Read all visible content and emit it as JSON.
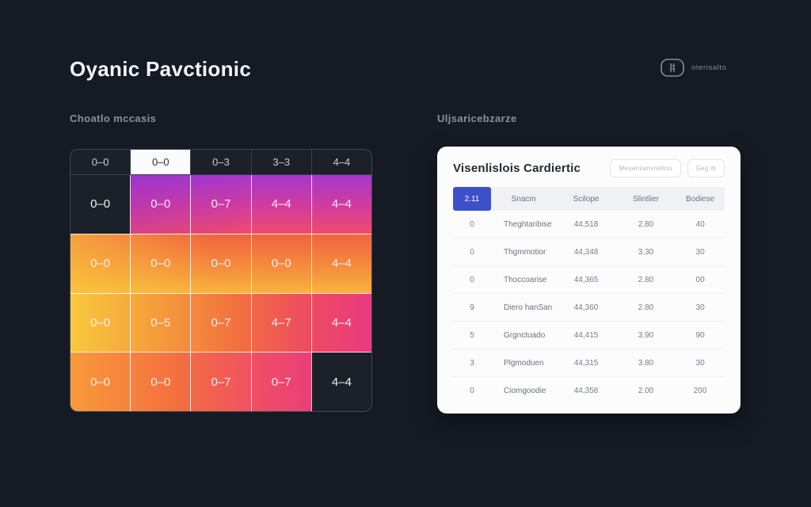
{
  "page": {
    "title": "Oyanic Pavctionic",
    "topright_chip_label": "oterisalto"
  },
  "colors": {
    "page_bg": "#151a24",
    "card_bg": "#fcfcfd",
    "accent_blue": "#3c50c8",
    "heatmap_dark_cell": "#1b2029",
    "heatmap_palette": [
      "#a637cb",
      "#f04b6c",
      "#f8c83d",
      "#f2703f",
      "#e13093"
    ]
  },
  "left": {
    "section_label": "Choatlo mccasis",
    "heatmap": {
      "header": {
        "cells": [
          "0–0",
          "0–0",
          "0–3",
          "3–3",
          "4–4"
        ],
        "highlighted_index": 1
      },
      "rows": [
        {
          "cells": [
            "0–0",
            "0–0",
            "0–7",
            "4–4",
            "4–4"
          ],
          "dark": [
            0
          ]
        },
        {
          "cells": [
            "0–0",
            "0–0",
            "0–0",
            "0–0",
            "4–4"
          ],
          "dark": []
        },
        {
          "cells": [
            "0–0",
            "0–5",
            "0–7",
            "4–7",
            "4–4"
          ],
          "dark": []
        },
        {
          "cells": [
            "0–0",
            "0–0",
            "0–7",
            "0–7",
            "4–4"
          ],
          "dark": [
            4
          ]
        }
      ]
    }
  },
  "right": {
    "section_label": "Uljsaricebzarze",
    "card": {
      "title": "Visenlislois Cardiertic",
      "buttons": [
        "Meuanzanvoelinu",
        "Geg ib"
      ],
      "table": {
        "headers": [
          "2.11",
          "Snacm",
          "Scilope",
          "Slintlier",
          "Bodiese"
        ],
        "rows": [
          [
            "0",
            "Theghtaribise",
            "44,518",
            "2.80",
            "40"
          ],
          [
            "0",
            "Thgmmotior",
            "44,348",
            "3.30",
            "30"
          ],
          [
            "0",
            "Thoccoarise",
            "44,365",
            "2.80",
            "00"
          ],
          [
            "9",
            "Diero hanSan",
            "44,360",
            "2.80",
            "30"
          ],
          [
            "5",
            "Grgnctuado",
            "44,415",
            "3.90",
            "90"
          ],
          [
            "3",
            "Plgmoduen",
            "44,315",
            "3.80",
            "30"
          ],
          [
            "0",
            "Ciomgoodie",
            "44,358",
            "2.00",
            "200"
          ]
        ]
      }
    }
  }
}
